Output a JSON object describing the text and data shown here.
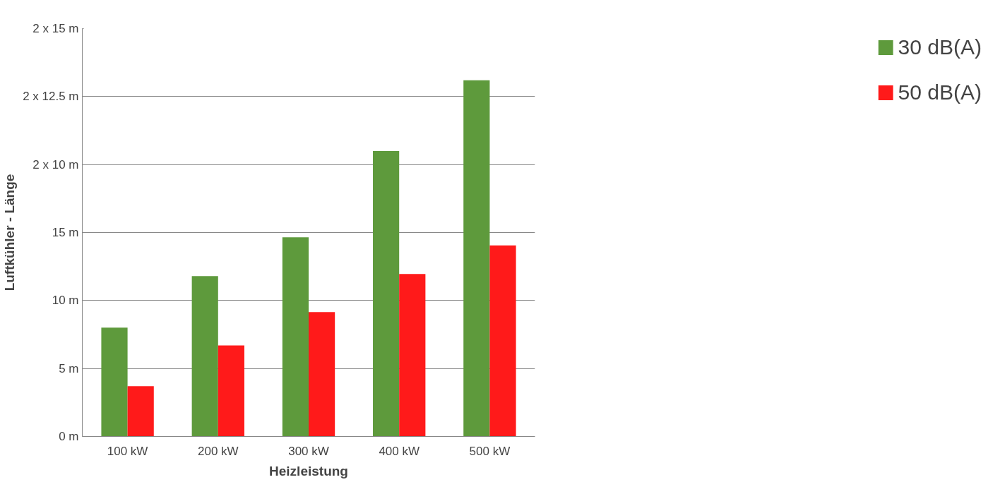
{
  "chart_data": {
    "type": "bar",
    "xlabel": "Heizleistung",
    "ylabel": "Luftkühler - Länge",
    "categories": [
      "100 kW",
      "200 kW",
      "300 kW",
      "400 kW",
      "500 kW"
    ],
    "series": [
      {
        "name": "30 dB(A)",
        "color": "#5e9a3c",
        "values": [
          8.0,
          11.8,
          14.65,
          21.0,
          26.2
        ]
      },
      {
        "name": "50 dB(A)",
        "color": "#ff1a1a",
        "values": [
          3.7,
          6.7,
          9.15,
          11.95,
          14.05
        ]
      }
    ],
    "ylim": [
      0,
      30
    ],
    "yticks": [
      {
        "value": 0,
        "label": "0 m"
      },
      {
        "value": 5,
        "label": "5 m"
      },
      {
        "value": 10,
        "label": "10 m"
      },
      {
        "value": 15,
        "label": "15 m"
      },
      {
        "value": 20,
        "label": "2 x 10 m"
      },
      {
        "value": 25,
        "label": "2 x 12.5 m"
      },
      {
        "value": 30,
        "label": "2 x 15 m"
      }
    ],
    "grid": "y",
    "legend": "right"
  }
}
